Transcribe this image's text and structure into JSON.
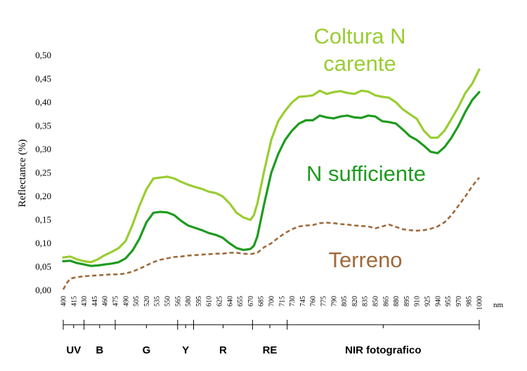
{
  "chart_data": {
    "type": "line",
    "ylabel": "Reflectance (%)",
    "x_unit": "nm",
    "ylim": [
      0,
      0.5
    ],
    "y_ticks": [
      "0,00",
      "0,05",
      "0,10",
      "0,15",
      "0,20",
      "0,25",
      "0,30",
      "0,35",
      "0,40",
      "0,45",
      "0,50"
    ],
    "x_ticks": [
      "400",
      "415",
      "430",
      "445",
      "460",
      "475",
      "490",
      "505",
      "520",
      "535",
      "550",
      "565",
      "580",
      "595",
      "610",
      "625",
      "640",
      "655",
      "670",
      "685",
      "700",
      "715",
      "730",
      "745",
      "760",
      "775",
      "790",
      "805",
      "820",
      "835",
      "850",
      "865",
      "880",
      "895",
      "910",
      "925",
      "940",
      "955",
      "970",
      "985",
      "1000"
    ],
    "xlim": [
      400,
      1000
    ],
    "series": [
      {
        "name": "Coltura N carente",
        "color": "#9acd32",
        "style": "solid",
        "x": [
          400,
          410,
          420,
          430,
          440,
          450,
          460,
          470,
          480,
          490,
          500,
          510,
          520,
          530,
          540,
          550,
          560,
          570,
          580,
          590,
          600,
          610,
          620,
          630,
          640,
          650,
          660,
          670,
          675,
          680,
          690,
          700,
          710,
          720,
          730,
          740,
          750,
          760,
          770,
          780,
          790,
          800,
          810,
          820,
          830,
          840,
          850,
          860,
          870,
          880,
          890,
          900,
          910,
          920,
          930,
          940,
          950,
          960,
          970,
          980,
          990,
          1000
        ],
        "y": [
          0.07,
          0.072,
          0.066,
          0.062,
          0.06,
          0.066,
          0.075,
          0.082,
          0.09,
          0.105,
          0.14,
          0.18,
          0.215,
          0.238,
          0.24,
          0.242,
          0.238,
          0.231,
          0.225,
          0.22,
          0.216,
          0.21,
          0.207,
          0.2,
          0.185,
          0.165,
          0.155,
          0.15,
          0.16,
          0.185,
          0.255,
          0.32,
          0.36,
          0.382,
          0.4,
          0.412,
          0.413,
          0.415,
          0.425,
          0.418,
          0.422,
          0.424,
          0.42,
          0.418,
          0.425,
          0.423,
          0.415,
          0.412,
          0.41,
          0.4,
          0.385,
          0.375,
          0.365,
          0.34,
          0.325,
          0.325,
          0.34,
          0.365,
          0.39,
          0.42,
          0.44,
          0.47
        ]
      },
      {
        "name": "N sufficiente",
        "color": "#1e9b1e",
        "style": "solid",
        "x": [
          400,
          410,
          420,
          430,
          440,
          450,
          460,
          470,
          480,
          490,
          500,
          510,
          520,
          530,
          540,
          550,
          560,
          570,
          580,
          590,
          600,
          610,
          620,
          630,
          640,
          650,
          660,
          670,
          675,
          680,
          690,
          700,
          710,
          720,
          730,
          740,
          750,
          760,
          770,
          780,
          790,
          800,
          810,
          820,
          830,
          840,
          850,
          860,
          870,
          880,
          890,
          900,
          910,
          920,
          930,
          940,
          950,
          960,
          970,
          980,
          990,
          1000
        ],
        "y": [
          0.062,
          0.063,
          0.058,
          0.055,
          0.052,
          0.053,
          0.055,
          0.057,
          0.06,
          0.068,
          0.085,
          0.11,
          0.145,
          0.165,
          0.167,
          0.166,
          0.16,
          0.148,
          0.138,
          0.133,
          0.128,
          0.122,
          0.118,
          0.112,
          0.1,
          0.09,
          0.086,
          0.088,
          0.095,
          0.115,
          0.185,
          0.25,
          0.29,
          0.32,
          0.34,
          0.355,
          0.362,
          0.362,
          0.372,
          0.368,
          0.366,
          0.37,
          0.372,
          0.368,
          0.367,
          0.372,
          0.37,
          0.36,
          0.358,
          0.355,
          0.342,
          0.328,
          0.32,
          0.308,
          0.295,
          0.292,
          0.305,
          0.325,
          0.35,
          0.38,
          0.405,
          0.422
        ]
      },
      {
        "name": "Terreno",
        "color": "#a0693a",
        "style": "dashed",
        "x": [
          400,
          405,
          410,
          420,
          430,
          440,
          450,
          460,
          470,
          480,
          490,
          500,
          510,
          520,
          530,
          540,
          550,
          560,
          570,
          580,
          590,
          600,
          610,
          620,
          630,
          640,
          650,
          660,
          670,
          680,
          690,
          700,
          710,
          720,
          730,
          740,
          750,
          760,
          770,
          780,
          790,
          800,
          810,
          820,
          830,
          840,
          850,
          860,
          870,
          880,
          890,
          900,
          910,
          920,
          930,
          940,
          950,
          960,
          970,
          980,
          990,
          1000
        ],
        "y": [
          0.002,
          0.015,
          0.025,
          0.028,
          0.03,
          0.031,
          0.032,
          0.033,
          0.034,
          0.034,
          0.036,
          0.04,
          0.046,
          0.053,
          0.06,
          0.065,
          0.068,
          0.071,
          0.072,
          0.074,
          0.075,
          0.076,
          0.077,
          0.078,
          0.078,
          0.08,
          0.08,
          0.078,
          0.077,
          0.08,
          0.092,
          0.1,
          0.112,
          0.122,
          0.13,
          0.136,
          0.138,
          0.139,
          0.143,
          0.144,
          0.143,
          0.141,
          0.14,
          0.138,
          0.137,
          0.136,
          0.132,
          0.136,
          0.14,
          0.135,
          0.13,
          0.128,
          0.127,
          0.128,
          0.131,
          0.136,
          0.145,
          0.16,
          0.18,
          0.2,
          0.222,
          0.24
        ]
      }
    ],
    "series_labels": [
      "Coltura N\ncarente",
      "N sufficiente",
      "Terreno"
    ],
    "bands": [
      {
        "label": "UV",
        "from": 400,
        "to": 430
      },
      {
        "label": "B",
        "from": 430,
        "to": 475
      },
      {
        "label": "G",
        "from": 475,
        "to": 565
      },
      {
        "label": "Y",
        "from": 565,
        "to": 588
      },
      {
        "label": "R",
        "from": 588,
        "to": 673
      },
      {
        "label": "RE",
        "from": 673,
        "to": 723
      },
      {
        "label": "NIR fotografico",
        "from": 723,
        "to": 1000
      }
    ]
  }
}
